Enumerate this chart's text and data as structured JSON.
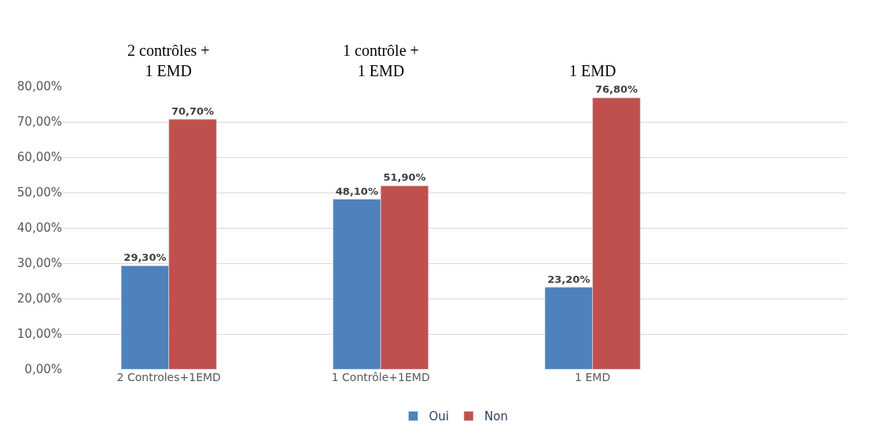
{
  "chart_data": {
    "type": "bar",
    "categories": [
      "2 Controles+1EMD",
      "1 Contrôle+1EMD",
      "1 EMD"
    ],
    "series": [
      {
        "name": "Oui",
        "color": "#4f81bd",
        "values": [
          29.3,
          48.1,
          23.2
        ],
        "value_labels": [
          "29,30%",
          "48,10%",
          "23,20%"
        ]
      },
      {
        "name": "Non",
        "color": "#c0504d",
        "values": [
          70.7,
          51.9,
          76.8
        ],
        "value_labels": [
          "70,70%",
          "51,90%",
          "76,80%"
        ]
      }
    ],
    "ylim": [
      0,
      80
    ],
    "yticks": [
      {
        "value": 0,
        "label": "0,00%"
      },
      {
        "value": 10,
        "label": "10,00%"
      },
      {
        "value": 20,
        "label": "20,00%"
      },
      {
        "value": 30,
        "label": "30,00%"
      },
      {
        "value": 40,
        "label": "40,00%"
      },
      {
        "value": 50,
        "label": "50,00%"
      },
      {
        "value": 60,
        "label": "60,00%"
      },
      {
        "value": 70,
        "label": "70,00%"
      },
      {
        "value": 80,
        "label": "80,00%"
      }
    ],
    "annotations": [
      "2 contrôles +\n1 EMD",
      "1 contrôle +\n1 EMD",
      "1 EMD"
    ],
    "grid": "y",
    "legend": "bottom"
  }
}
